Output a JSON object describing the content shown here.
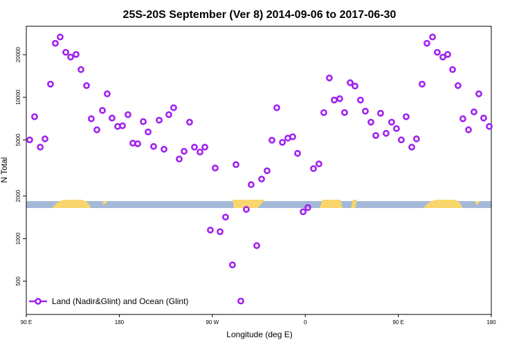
{
  "chart_data": {
    "type": "scatter",
    "title": "25S-20S September (Ver 8)   2014-09-06 to 2017-06-30",
    "x_label": "Longitude (deg E)",
    "y_label": "N Total",
    "x": [
      93.3,
      98.0,
      103.5,
      108.1,
      113.4,
      118.1,
      122.8,
      128.2,
      132.9,
      138.2,
      142.9,
      148.3,
      152.9,
      158.3,
      163.7,
      168.3,
      173.0,
      178.4,
      183.1,
      188.4,
      193.1,
      197.8,
      203.2,
      207.9,
      213.2,
      218.6,
      223.3,
      227.9,
      232.6,
      238.0,
      242.7,
      248.0,
      252.7,
      258.1,
      262.8,
      272.8,
      268.1,
      277.5,
      282.8,
      289.5,
      292.9,
      297.6,
      302.9,
      307.6,
      313.0,
      317.7,
      323.0,
      327.7,
      332.4,
      337.8,
      343.1,
      347.8,
      352.5,
      357.9,
      362.5,
      367.9,
      373.2,
      377.9,
      383.3,
      388.0,
      393.3,
      398.0,
      403.4,
      408.1,
      413.4,
      418.1,
      423.5,
      428.2,
      432.8,
      438.2,
      443.5,
      448.2,
      452.9,
      457.6,
      463.0,
      467.6,
      473.0,
      477.7,
      483.1,
      487.7,
      493.1,
      497.8,
      502.5,
      507.8,
      512.5,
      517.9,
      523.2,
      527.9,
      532.6,
      538.0
    ],
    "series": [
      {
        "name": "Land (Nadir&Glint) and Ocean (Glint)",
        "color": "#a020f0",
        "values": [
          5000,
          7290,
          4440,
          5080,
          12390,
          24100,
          26700,
          20800,
          19250,
          20100,
          15700,
          12100,
          7050,
          5890,
          8070,
          10580,
          7130,
          6220,
          6290,
          7540,
          4740,
          4690,
          6730,
          5690,
          4490,
          6890,
          4290,
          7540,
          8440,
          3660,
          4150,
          6670,
          4440,
          4100,
          4440,
          3160,
          1150,
          1120,
          1420,
          652,
          3340,
          362,
          1610,
          2410,
          893,
          2640,
          3020,
          4970,
          8440,
          4800,
          5140,
          5260,
          4010,
          1550,
          1660,
          3130,
          3380,
          7800,
          13700,
          9560,
          9780,
          7800,
          12680,
          12000,
          9560,
          7980,
          6670,
          5370,
          7710,
          5560,
          6670,
          6010,
          5000,
          7290,
          4440,
          5080,
          12390,
          24100,
          26700,
          20800,
          19250,
          20100,
          15700,
          12100,
          7050,
          5890,
          7880,
          10580,
          7130,
          6220
        ]
      }
    ],
    "xlim": [
      90,
      540
    ],
    "xticks": [
      {
        "value": 90,
        "label": "90 E"
      },
      {
        "value": 180,
        "label": "180"
      },
      {
        "value": 270,
        "label": "90 W"
      },
      {
        "value": 360,
        "label": "0"
      },
      {
        "value": 450,
        "label": "90 E"
      },
      {
        "value": 540,
        "label": "180"
      }
    ],
    "ylim": [
      291,
      31800
    ],
    "yticks": [
      500,
      1000,
      2000,
      5000,
      10000,
      20000
    ],
    "y_log": true,
    "legend": "bottom-left"
  }
}
